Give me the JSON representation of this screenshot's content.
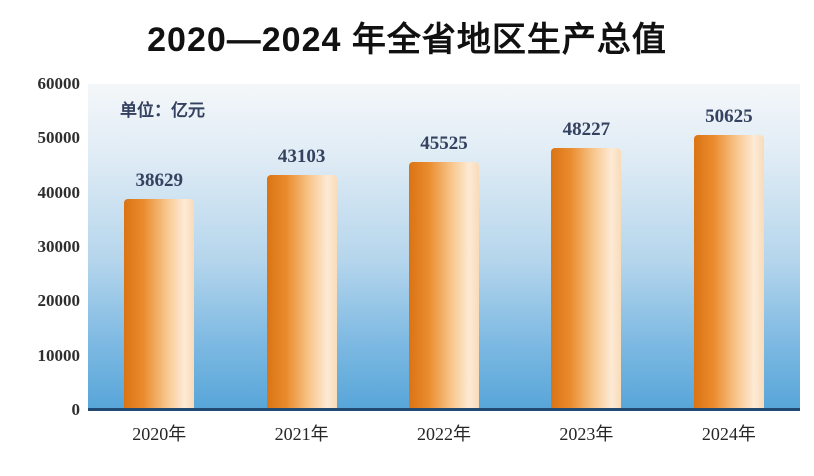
{
  "title": "2020—2024 年全省地区生产总值",
  "unit_label": "单位：亿元",
  "chart_data": {
    "type": "bar",
    "title": "2020—2024 年全省地区生产总值",
    "unit": "亿元",
    "categories": [
      "2020年",
      "2021年",
      "2022年",
      "2023年",
      "2024年"
    ],
    "values": [
      38629,
      43103,
      45525,
      48227,
      50625
    ],
    "xlabel": "",
    "ylabel": "",
    "ylim": [
      0,
      60000
    ],
    "yticks": [
      0,
      10000,
      20000,
      30000,
      40000,
      50000,
      60000
    ],
    "grid": false,
    "legend": false,
    "annotations": [
      "单位：亿元"
    ],
    "colors": {
      "bar_gradient_dark": "#db7314",
      "bar_gradient_light": "#fdead5",
      "plot_bg_top": "#f4f7f9",
      "plot_bg_bottom": "#58a6d9",
      "value_label": "#34415f",
      "axis_baseline": "#214a72",
      "tick_text": "#2e2e2e",
      "title_text": "#111111"
    }
  }
}
